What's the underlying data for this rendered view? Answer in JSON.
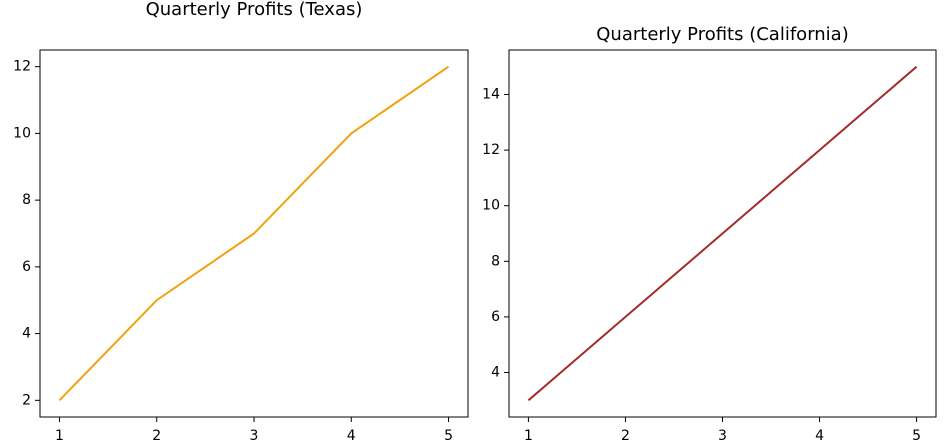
{
  "chart_data": [
    {
      "type": "line",
      "title": "Quarterly Profits (Texas)",
      "x": [
        1,
        2,
        3,
        4,
        5
      ],
      "series": [
        {
          "name": "Texas",
          "color": "#f0a30a",
          "values": [
            2,
            5,
            7,
            10,
            12
          ]
        }
      ],
      "xlim": [
        0.8,
        5.2
      ],
      "xticks": [
        1,
        2,
        3,
        4,
        5
      ],
      "ylim": [
        1.5,
        12.5
      ],
      "yticks": [
        2,
        4,
        6,
        8,
        10,
        12
      ]
    },
    {
      "type": "line",
      "title": "Quarterly Profits (California)",
      "x": [
        1,
        2,
        3,
        4,
        5
      ],
      "series": [
        {
          "name": "California",
          "color": "#a52a2a",
          "values": [
            3,
            6,
            9,
            12,
            15
          ]
        }
      ],
      "xlim": [
        0.8,
        5.2
      ],
      "xticks": [
        1,
        2,
        3,
        4,
        5
      ],
      "ylim": [
        2.4,
        15.6
      ],
      "yticks": [
        4,
        6,
        8,
        10,
        12,
        14
      ]
    }
  ]
}
